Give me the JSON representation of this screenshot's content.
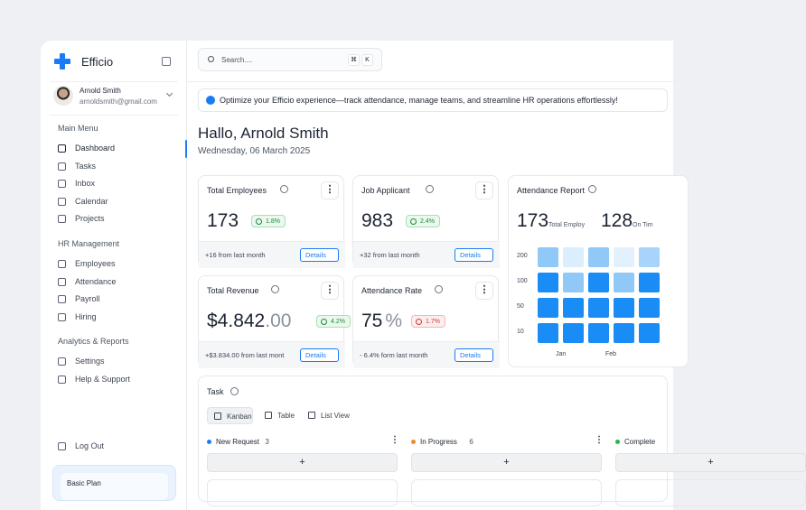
{
  "sidebar": {
    "brand": "Efficio",
    "user": {
      "name": "Arnold Smith",
      "email": "arnoldsmith@gmail.com"
    },
    "sections": [
      {
        "title": "Main Menu",
        "items": [
          "Dashboard",
          "Tasks",
          "Inbox",
          "Calendar",
          "Projects"
        ]
      },
      {
        "title": "HR Management",
        "items": [
          "Employees",
          "Attendance",
          "Payroll",
          "Hiring"
        ]
      },
      {
        "title": "Analytics & Reports",
        "items": [
          "Settings",
          "Help & Support"
        ]
      }
    ],
    "logout": "Log Out",
    "plan": "Basic Plan"
  },
  "search": {
    "placeholder": "Search....",
    "keys": [
      "⌘",
      "K"
    ]
  },
  "banner": "Optimize your Efficio experience—track attendance, manage teams, and streamline HR operations effortlessly!",
  "greeting": {
    "title": "Hallo, Arnold Smith",
    "date": "Wednesday, 06 March 2025"
  },
  "cards": [
    {
      "title": "Total Employees",
      "value": "173",
      "change": "1.8%",
      "note": "+16 from last month",
      "action": "Details"
    },
    {
      "title": "Job Applicant",
      "value": "983",
      "change": "2.4%",
      "note": "+32 from last month",
      "action": "Details"
    },
    {
      "title": "Total Revenue",
      "value": "$4.842",
      "value_decimals": ".00",
      "change": "4.2%",
      "note": "+$3.834.00 from last mont",
      "action": "Details"
    },
    {
      "title": "Attendance Rate",
      "value": "75",
      "unit": "%",
      "change": "1.7%",
      "note": "- 6.4% form last month",
      "action": "Details"
    }
  ],
  "attendance": {
    "title": "Attendance Report",
    "stats": [
      {
        "value": "173",
        "label": "Total Employ"
      },
      {
        "value": "128",
        "label": "On Tim"
      }
    ],
    "y_labels": [
      "200",
      "100",
      "50",
      "10"
    ],
    "x_labels": [
      "Jan",
      "Feb"
    ]
  },
  "tasks": {
    "title": "Task",
    "views": [
      "Kanban",
      "Table",
      "List View"
    ],
    "columns": [
      {
        "name": "New Request",
        "count": "3"
      },
      {
        "name": "In Progress",
        "count": "6"
      },
      {
        "name": "Complete"
      }
    ]
  }
}
